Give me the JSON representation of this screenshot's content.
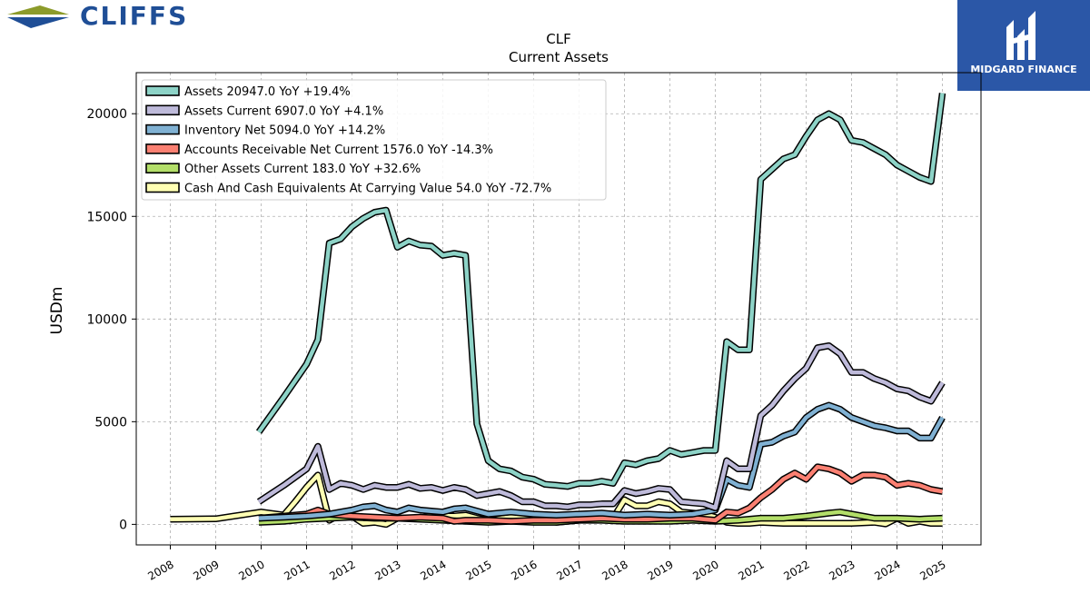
{
  "brand": {
    "left_logo_text": "CLIFFS",
    "right_logo_text": "MIDGARD FINANCE",
    "colors": {
      "cliffs_blue": "#1f4e96",
      "cliffs_olive": "#8c9b2a",
      "midgard_bg": "#2b57a7"
    }
  },
  "chart_data": {
    "type": "line",
    "title": "CLF",
    "subtitle": "Current  Assets",
    "ylabel": "USDm",
    "xlabel": "",
    "ylim": [
      -1000,
      22000
    ],
    "xlim": [
      2007.25,
      2025.85
    ],
    "yticks": [
      0,
      5000,
      10000,
      15000,
      20000
    ],
    "xticks": [
      "2008",
      "2009",
      "2010",
      "2011",
      "2012",
      "2013",
      "2014",
      "2015",
      "2016",
      "2017",
      "2018",
      "2019",
      "2020",
      "2021",
      "2022",
      "2023",
      "2024",
      "2025"
    ],
    "grid": true,
    "legend_position": "top-left",
    "series": [
      {
        "name": "Assets",
        "legend": "Assets  20947.0 YoY +19.4%",
        "color": "#8dd3c7",
        "x": [
          2009.95,
          2010.5,
          2011.0,
          2011.25,
          2011.5,
          2011.75,
          2012.0,
          2012.25,
          2012.5,
          2012.75,
          2013.0,
          2013.25,
          2013.5,
          2013.75,
          2014.0,
          2014.25,
          2014.5,
          2014.75,
          2015.0,
          2015.25,
          2015.5,
          2015.75,
          2016.0,
          2016.25,
          2016.5,
          2016.75,
          2017.0,
          2017.25,
          2017.5,
          2017.75,
          2018.0,
          2018.25,
          2018.5,
          2018.75,
          2019.0,
          2019.25,
          2019.5,
          2019.75,
          2020.0,
          2020.25,
          2020.5,
          2020.75,
          2021.0,
          2021.25,
          2021.5,
          2021.75,
          2022.0,
          2022.25,
          2022.5,
          2022.75,
          2023.0,
          2023.25,
          2023.5,
          2023.75,
          2024.0,
          2024.25,
          2024.5,
          2024.75,
          2025.0
        ],
        "y": [
          4500,
          6200,
          7800,
          9000,
          13700,
          13900,
          14500,
          14900,
          15200,
          15300,
          13500,
          13800,
          13600,
          13550,
          13100,
          13200,
          13100,
          4900,
          3100,
          2700,
          2600,
          2300,
          2200,
          1950,
          1900,
          1850,
          2000,
          2000,
          2100,
          2000,
          3000,
          2900,
          3100,
          3200,
          3600,
          3400,
          3500,
          3600,
          3600,
          8900,
          8500,
          8500,
          16800,
          17300,
          17800,
          18000,
          18900,
          19700,
          20000,
          19700,
          18700,
          18600,
          18300,
          18000,
          17500,
          17200,
          16900,
          16700,
          21000
        ]
      },
      {
        "name": "Assets Current",
        "legend": "Assets Current  6907.0 YoY +4.1%",
        "color": "#bebada",
        "x": [
          2009.95,
          2010.5,
          2011.0,
          2011.25,
          2011.5,
          2011.75,
          2012.0,
          2012.25,
          2012.5,
          2012.75,
          2013.0,
          2013.25,
          2013.5,
          2013.75,
          2014.0,
          2014.25,
          2014.5,
          2014.75,
          2015.0,
          2015.25,
          2015.5,
          2015.75,
          2016.0,
          2016.25,
          2016.5,
          2016.75,
          2017.0,
          2017.25,
          2017.5,
          2017.75,
          2018.0,
          2018.25,
          2018.5,
          2018.75,
          2019.0,
          2019.25,
          2019.5,
          2019.75,
          2020.0,
          2020.25,
          2020.5,
          2020.75,
          2021.0,
          2021.25,
          2021.5,
          2021.75,
          2022.0,
          2022.25,
          2022.5,
          2022.75,
          2023.0,
          2023.25,
          2023.5,
          2023.75,
          2024.0,
          2024.25,
          2024.5,
          2024.75,
          2025.0
        ],
        "y": [
          1100,
          1900,
          2700,
          3800,
          1700,
          2000,
          1900,
          1700,
          1900,
          1800,
          1800,
          1950,
          1750,
          1800,
          1650,
          1800,
          1700,
          1400,
          1500,
          1600,
          1400,
          1100,
          1100,
          900,
          900,
          850,
          950,
          950,
          1000,
          1000,
          1650,
          1500,
          1600,
          1750,
          1700,
          1100,
          1050,
          1000,
          800,
          3100,
          2700,
          2700,
          5300,
          5800,
          6500,
          7100,
          7600,
          8600,
          8700,
          8300,
          7400,
          7400,
          7100,
          6900,
          6600,
          6500,
          6200,
          6000,
          6900
        ]
      },
      {
        "name": "Inventory Net",
        "legend": "Inventory Net  5094.0 YoY +14.2%",
        "color": "#80b1d3",
        "x": [
          2009.95,
          2010.5,
          2011.0,
          2011.5,
          2012.0,
          2012.25,
          2012.5,
          2012.75,
          2013.0,
          2013.25,
          2013.5,
          2013.75,
          2014.0,
          2014.25,
          2014.5,
          2014.75,
          2015.0,
          2015.5,
          2016.0,
          2016.5,
          2017.0,
          2017.5,
          2018.0,
          2018.5,
          2019.0,
          2019.5,
          2020.0,
          2020.25,
          2020.5,
          2020.75,
          2021.0,
          2021.25,
          2021.5,
          2021.75,
          2022.0,
          2022.25,
          2022.5,
          2022.75,
          2023.0,
          2023.25,
          2023.5,
          2023.75,
          2024.0,
          2024.25,
          2024.5,
          2024.75,
          2025.0
        ],
        "y": [
          300,
          350,
          400,
          500,
          700,
          850,
          900,
          700,
          600,
          800,
          700,
          650,
          600,
          750,
          800,
          650,
          500,
          600,
          500,
          450,
          500,
          550,
          450,
          500,
          450,
          500,
          700,
          2200,
          1900,
          1800,
          3900,
          4000,
          4300,
          4500,
          5200,
          5600,
          5800,
          5600,
          5200,
          5000,
          4800,
          4700,
          4550,
          4550,
          4200,
          4200,
          5200
        ]
      },
      {
        "name": "Accounts Receivable Net Current",
        "legend": "Accounts Receivable Net Current  1576.0 YoY -14.3%",
        "color": "#fb8072",
        "x": [
          2009.95,
          2010.5,
          2011.0,
          2011.25,
          2011.5,
          2012.0,
          2012.5,
          2013.0,
          2013.5,
          2014.0,
          2014.25,
          2014.5,
          2015.0,
          2015.5,
          2016.0,
          2016.5,
          2017.0,
          2017.5,
          2018.0,
          2018.5,
          2019.0,
          2019.5,
          2020.0,
          2020.25,
          2020.5,
          2020.75,
          2021.0,
          2021.25,
          2021.5,
          2021.75,
          2022.0,
          2022.25,
          2022.5,
          2022.75,
          2023.0,
          2023.25,
          2023.5,
          2023.75,
          2024.0,
          2024.25,
          2024.5,
          2024.75,
          2025.0
        ],
        "y": [
          300,
          400,
          500,
          700,
          500,
          400,
          350,
          300,
          350,
          300,
          150,
          200,
          200,
          150,
          200,
          200,
          250,
          300,
          250,
          250,
          300,
          300,
          200,
          600,
          550,
          800,
          1300,
          1700,
          2200,
          2500,
          2200,
          2800,
          2700,
          2500,
          2100,
          2400,
          2400,
          2300,
          1900,
          2000,
          1900,
          1700,
          1600
        ]
      },
      {
        "name": "Other Assets Current",
        "legend": "Other Assets Current  183.0 YoY +32.6%",
        "color": "#b3de69",
        "x": [
          2009.95,
          2010.5,
          2011.0,
          2011.5,
          2012.0,
          2012.5,
          2013.0,
          2013.5,
          2014.0,
          2014.5,
          2015.0,
          2015.5,
          2016.0,
          2016.5,
          2017.0,
          2017.5,
          2018.0,
          2018.5,
          2019.0,
          2019.5,
          2020.0,
          2020.5,
          2021.0,
          2021.5,
          2022.0,
          2022.5,
          2022.75,
          2023.0,
          2023.5,
          2024.0,
          2024.5,
          2025.0
        ],
        "y": [
          100,
          150,
          250,
          300,
          350,
          300,
          300,
          250,
          200,
          150,
          100,
          150,
          100,
          100,
          200,
          200,
          150,
          150,
          150,
          200,
          150,
          200,
          300,
          300,
          400,
          550,
          600,
          500,
          300,
          300,
          250,
          300
        ]
      },
      {
        "name": "Cash And Cash Equivalents At Carrying Value",
        "legend": "Cash And Cash Equivalents At Carrying Value  54.0 YoY -72.7%",
        "color": "#ffffb3",
        "x": [
          2008.0,
          2009.0,
          2010.0,
          2010.5,
          2010.75,
          2011.0,
          2011.25,
          2011.5,
          2011.75,
          2012.0,
          2012.25,
          2012.5,
          2012.75,
          2013.0,
          2013.25,
          2013.5,
          2013.75,
          2014.0,
          2014.25,
          2014.5,
          2014.75,
          2015.0,
          2015.5,
          2016.0,
          2016.5,
          2017.0,
          2017.5,
          2017.75,
          2018.0,
          2018.25,
          2018.5,
          2018.75,
          2019.0,
          2019.25,
          2019.5,
          2019.75,
          2020.0,
          2020.25,
          2020.5,
          2020.75,
          2021.0,
          2021.5,
          2022.0,
          2022.5,
          2023.0,
          2023.5,
          2023.75,
          2024.0,
          2024.25,
          2024.5,
          2024.75,
          2025.0
        ],
        "y": [
          250,
          270,
          600,
          450,
          1100,
          1800,
          2400,
          200,
          500,
          400,
          50,
          100,
          0,
          300,
          300,
          300,
          450,
          400,
          400,
          450,
          300,
          200,
          350,
          300,
          100,
          200,
          350,
          300,
          1200,
          900,
          900,
          1100,
          1000,
          600,
          550,
          500,
          350,
          100,
          50,
          50,
          100,
          50,
          50,
          50,
          50,
          100,
          20,
          300,
          50,
          150,
          50,
          50
        ]
      }
    ]
  }
}
